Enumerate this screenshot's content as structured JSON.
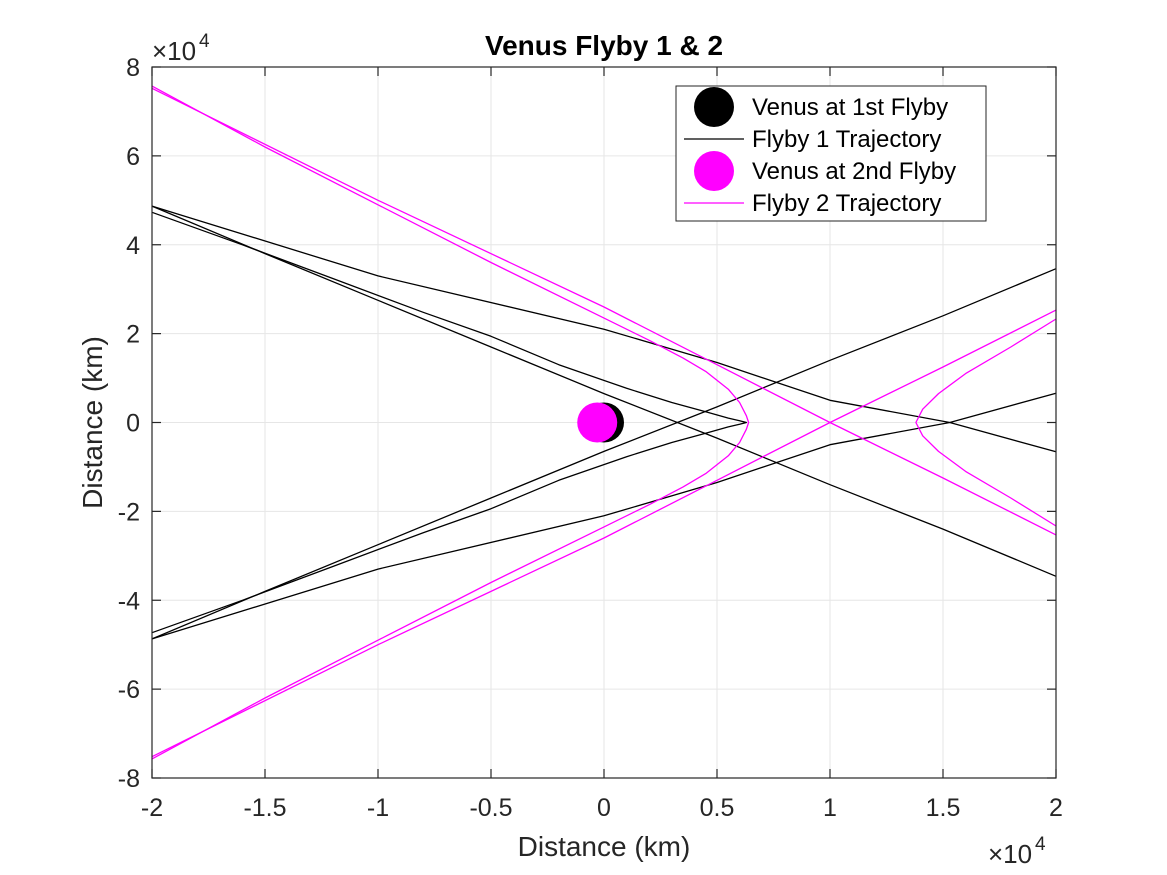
{
  "chart_data": {
    "type": "line",
    "title": "Venus Flyby 1 & 2",
    "xlabel": "Distance (km)",
    "ylabel": "Distance (km)",
    "xlim": [
      -20000,
      20000
    ],
    "ylim": [
      -80000,
      80000
    ],
    "x_ticks": [
      -20000,
      -15000,
      -10000,
      -5000,
      0,
      5000,
      10000,
      15000,
      20000
    ],
    "x_tick_labels": [
      "-2",
      "-1.5",
      "-1",
      "-0.5",
      "0",
      "0.5",
      "1",
      "1.5",
      "2"
    ],
    "y_ticks": [
      -80000,
      -60000,
      -40000,
      -20000,
      0,
      20000,
      40000,
      60000,
      80000
    ],
    "y_tick_labels": [
      "-8",
      "-6",
      "-4",
      "-2",
      "0",
      "2",
      "4",
      "6",
      "8"
    ],
    "x_exponent_label": "×10",
    "x_exponent_power": "4",
    "y_exponent_label": "×10",
    "y_exponent_power": "4",
    "grid": true,
    "legend_position": "top-right",
    "legend": [
      {
        "label": "Venus at 1st Flyby",
        "kind": "marker",
        "color": "#000000"
      },
      {
        "label": "Flyby 1 Trajectory",
        "kind": "line",
        "color": "#000000"
      },
      {
        "label": "Venus at 2nd Flyby",
        "kind": "marker",
        "color": "#ff00ff"
      },
      {
        "label": "Flyby 2 Trajectory",
        "kind": "line",
        "color": "#ff00ff"
      }
    ],
    "series": [
      {
        "name": "Venus at 1st Flyby",
        "type": "scatter",
        "color": "#000000",
        "points": [
          [
            0,
            0
          ]
        ]
      },
      {
        "name": "Flyby 1 Trajectory",
        "type": "line",
        "color": "#000000",
        "paths": [
          [
            [
              -20000,
              48700
            ],
            [
              -15000,
              38000
            ],
            [
              -10000,
              27500
            ],
            [
              -5000,
              17000
            ],
            [
              0,
              6500
            ],
            [
              5000,
              -3500
            ],
            [
              10000,
              -14000
            ],
            [
              15000,
              -24000
            ],
            [
              20000,
              -34600
            ]
          ],
          [
            [
              -20000,
              47300
            ],
            [
              -16000,
              40000
            ],
            [
              -12000,
              32400
            ],
            [
              -8000,
              24800
            ],
            [
              -5000,
              19400
            ],
            [
              -2000,
              13000
            ],
            [
              1000,
              7700
            ],
            [
              3000,
              4500
            ],
            [
              4500,
              2400
            ],
            [
              5500,
              1000
            ],
            [
              6000,
              400
            ],
            [
              6300,
              0
            ],
            [
              6000,
              -400
            ],
            [
              5500,
              -1000
            ],
            [
              4500,
              -2400
            ],
            [
              3000,
              -4500
            ],
            [
              1000,
              -7700
            ],
            [
              -2000,
              -13000
            ],
            [
              -5000,
              -19400
            ],
            [
              -8000,
              -24800
            ],
            [
              -12000,
              -32400
            ],
            [
              -16000,
              -40000
            ],
            [
              -20000,
              -47300
            ]
          ],
          [
            [
              -20000,
              -48700
            ],
            [
              -15000,
              -38000
            ],
            [
              -10000,
              -27500
            ],
            [
              -5000,
              -17000
            ],
            [
              0,
              -6500
            ],
            [
              5000,
              3500
            ],
            [
              10000,
              14000
            ],
            [
              15000,
              24000
            ],
            [
              20000,
              34600
            ]
          ],
          [
            [
              -20000,
              48700
            ],
            [
              -10000,
              33000
            ],
            [
              0,
              21000
            ],
            [
              5000,
              13500
            ],
            [
              10000,
              5000
            ],
            [
              15300,
              0
            ],
            [
              20000,
              -6600
            ]
          ],
          [
            [
              -20000,
              -48700
            ],
            [
              -10000,
              -33000
            ],
            [
              0,
              -21000
            ],
            [
              5000,
              -13500
            ],
            [
              10000,
              -5000
            ],
            [
              15300,
              0
            ],
            [
              20000,
              6600
            ]
          ]
        ]
      },
      {
        "name": "Venus at 2nd Flyby",
        "type": "scatter",
        "color": "#ff00ff",
        "points": [
          [
            -300,
            0
          ]
        ]
      },
      {
        "name": "Flyby 2 Trajectory",
        "type": "line",
        "color": "#ff00ff",
        "paths": [
          [
            [
              -20000,
              75700
            ],
            [
              -15000,
              62000
            ],
            [
              -10000,
              49000
            ],
            [
              -5000,
              36000
            ],
            [
              0,
              23500
            ],
            [
              2000,
              18500
            ],
            [
              3500,
              14500
            ],
            [
              4500,
              11500
            ],
            [
              5500,
              7500
            ],
            [
              6000,
              4500
            ],
            [
              6300,
              1500
            ],
            [
              6400,
              0
            ],
            [
              6300,
              -1500
            ],
            [
              6000,
              -4500
            ],
            [
              5500,
              -7500
            ],
            [
              4500,
              -11500
            ],
            [
              3500,
              -14500
            ],
            [
              2000,
              -18500
            ],
            [
              0,
              -23500
            ],
            [
              -5000,
              -36000
            ],
            [
              -10000,
              -49000
            ],
            [
              -15000,
              -62000
            ],
            [
              -20000,
              -75700
            ]
          ],
          [
            [
              -20000,
              75200
            ],
            [
              -10000,
              50000
            ],
            [
              0,
              26000
            ],
            [
              5000,
              13000
            ],
            [
              10000,
              0
            ],
            [
              15000,
              -12500
            ],
            [
              20000,
              -25300
            ]
          ],
          [
            [
              -20000,
              -75200
            ],
            [
              -10000,
              -50000
            ],
            [
              0,
              -26000
            ],
            [
              5000,
              -13000
            ],
            [
              10000,
              0
            ],
            [
              15000,
              12500
            ],
            [
              20000,
              25300
            ]
          ],
          [
            [
              20000,
              23300
            ],
            [
              18000,
              17000
            ],
            [
              16000,
              11000
            ],
            [
              14800,
              6500
            ],
            [
              14100,
              3000
            ],
            [
              13800,
              0
            ],
            [
              14100,
              -3000
            ],
            [
              14800,
              -6500
            ],
            [
              16000,
              -11000
            ],
            [
              18000,
              -17000
            ],
            [
              20000,
              -23300
            ]
          ]
        ]
      }
    ]
  }
}
